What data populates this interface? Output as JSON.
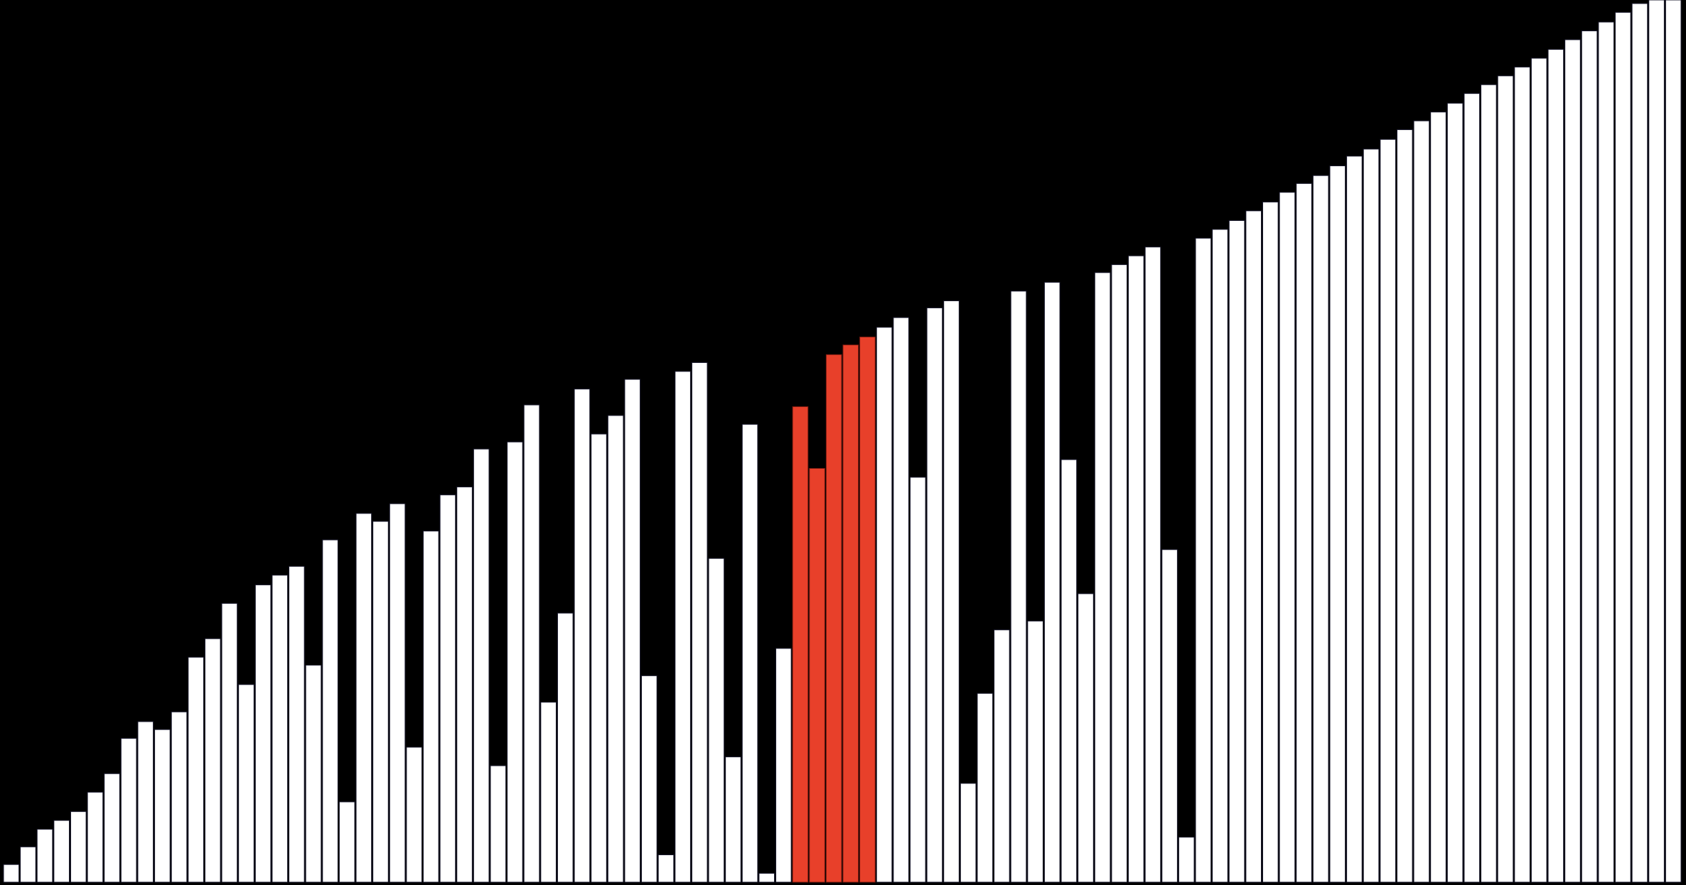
{
  "chart_data": {
    "type": "bar",
    "title": "",
    "xlabel": "",
    "ylabel": "",
    "ylim": [
      0,
      100
    ],
    "grid": false,
    "legend": "none",
    "colors": {
      "background": "#000000",
      "bar_fill": "#ffffff",
      "bar_stroke": "#1a1a2e",
      "highlight_fill": "#e8402a",
      "highlight_stroke": "#7a1a10"
    },
    "highlight_indices": [
      47,
      48,
      49,
      50,
      51
    ],
    "values": [
      2.0,
      4.0,
      6.0,
      7.0,
      8.0,
      10.2,
      12.3,
      16.3,
      18.2,
      17.3,
      19.3,
      25.5,
      27.6,
      31.6,
      22.4,
      33.7,
      34.8,
      35.8,
      24.6,
      38.8,
      9.1,
      41.8,
      40.9,
      42.9,
      15.3,
      39.8,
      43.9,
      44.8,
      49.1,
      13.2,
      49.9,
      54.1,
      20.4,
      30.5,
      55.9,
      50.8,
      52.9,
      57.0,
      23.4,
      3.1,
      57.9,
      58.9,
      36.7,
      14.2,
      51.9,
      1.0,
      26.5,
      53.9,
      46.9,
      59.8,
      60.9,
      61.8,
      62.9,
      64.0,
      45.9,
      65.1,
      65.9,
      11.2,
      21.4,
      28.6,
      67.0,
      29.6,
      68.0,
      47.9,
      32.7,
      69.1,
      70.0,
      71.0,
      72.0,
      37.7,
      5.1,
      73.0,
      74.0,
      75.0,
      76.1,
      77.1,
      78.2,
      79.2,
      80.1,
      81.2,
      82.3,
      83.1,
      84.2,
      85.3,
      86.3,
      87.3,
      88.3,
      89.4,
      90.4,
      91.4,
      92.4,
      93.4,
      94.4,
      95.5,
      96.5,
      97.5,
      98.6,
      99.6,
      100.0,
      100.0
    ]
  }
}
